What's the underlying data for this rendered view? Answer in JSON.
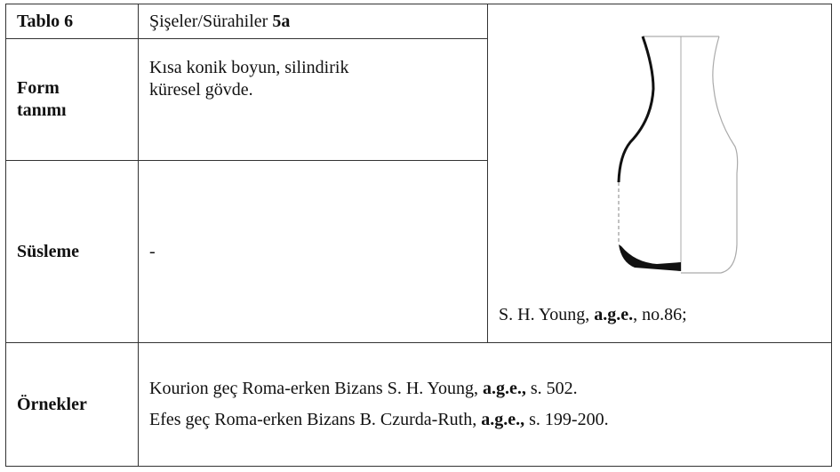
{
  "table": {
    "rows": [
      {
        "label": "Tablo 6",
        "content": [
          [
            {
              "text": "Şişeler/Sürahiler "
            },
            {
              "text": "5a",
              "bold": true
            }
          ]
        ]
      },
      {
        "label": "Form tanımı",
        "content": [
          [
            {
              "text": "Kısa konik boyun, silindirik"
            }
          ],
          [
            {
              "text": "küresel gövde."
            }
          ]
        ]
      },
      {
        "label": "Süsleme",
        "content": [
          [
            {
              "text": "-"
            }
          ]
        ]
      },
      {
        "label": "Örnekler",
        "content": [
          [
            {
              "text": "Kourion geç Roma-erken Bizans S. H. Young, "
            },
            {
              "text": "a.g.e.,",
              "bold": true
            },
            {
              "text": " s. 502."
            }
          ],
          [
            {
              "text": "Efes geç Roma-erken Bizans B. Czurda-Ruth, "
            },
            {
              "text": "a.g.e.,",
              "bold": true
            },
            {
              "text": " s. 199-200."
            }
          ]
        ]
      }
    ],
    "figure": {
      "caption": [
        {
          "text": "S. H. Young, "
        },
        {
          "text": "a.g.e.",
          "bold": true
        },
        {
          "text": ", no.86;"
        }
      ]
    }
  }
}
